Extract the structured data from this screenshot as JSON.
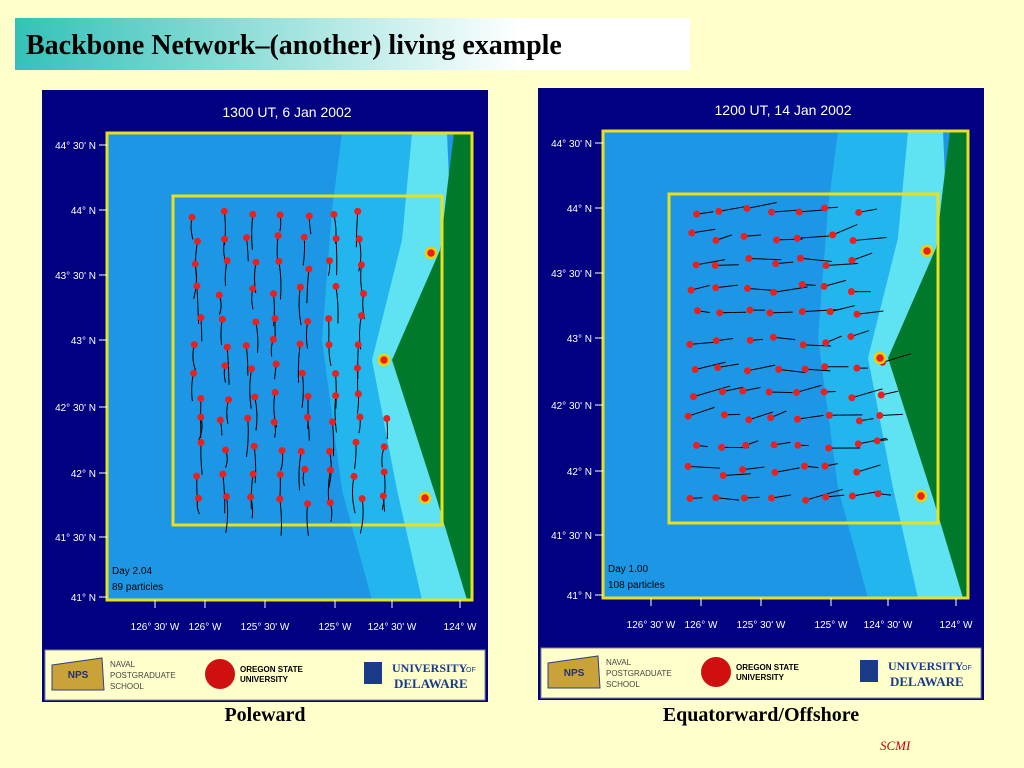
{
  "header": {
    "title": "Backbone Network–(another) living example"
  },
  "axes": {
    "lat_labels": [
      "44° 30' N",
      "44° N",
      "43° 30' N",
      "43° N",
      "42° 30' N",
      "42° N",
      "41° 30' N",
      "41° N"
    ],
    "lon_labels": [
      "126° 30' W",
      "126° W",
      "125° 30' W",
      "125° W",
      "124° 30' W",
      "124° W"
    ]
  },
  "logos": {
    "nps": "NPS",
    "naval": [
      "NAVAL",
      "POSTGRADUATE",
      "SCHOOL"
    ],
    "osu": [
      "OREGON STATE",
      "UNIVERSITY"
    ],
    "ud_main": "UNIVERSITY",
    "ud_of": "OF",
    "ud_sub": "DELAWARE"
  },
  "panels": [
    {
      "title": "1300 UT, 6 Jan 2002",
      "day": "Day 2.04",
      "particles": "89 particles",
      "caption": "Poleward"
    },
    {
      "title": "1200 UT, 14 Jan 2002",
      "day": "Day 1.00",
      "particles": "108 particles",
      "caption": "Equatorward/Offshore"
    }
  ],
  "footer": {
    "note": "SCMI"
  }
}
